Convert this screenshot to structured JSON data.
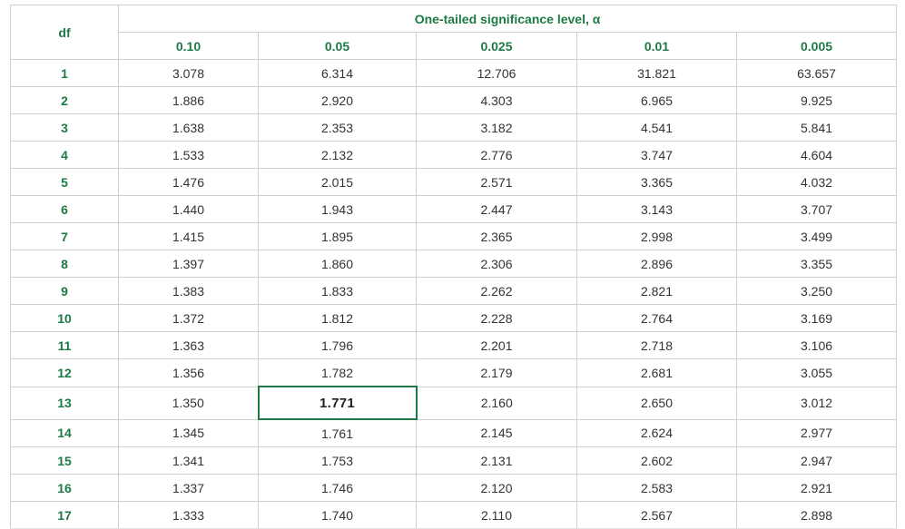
{
  "header": {
    "df_label": "df",
    "group_label": "One-tailed significance level, α",
    "alphas": [
      "0.10",
      "0.05",
      "0.025",
      "0.01",
      "0.005"
    ]
  },
  "rows": [
    {
      "df": "1",
      "values": [
        "3.078",
        "6.314",
        "12.706",
        "31.821",
        "63.657"
      ]
    },
    {
      "df": "2",
      "values": [
        "1.886",
        "2.920",
        "4.303",
        "6.965",
        "9.925"
      ]
    },
    {
      "df": "3",
      "values": [
        "1.638",
        "2.353",
        "3.182",
        "4.541",
        "5.841"
      ]
    },
    {
      "df": "4",
      "values": [
        "1.533",
        "2.132",
        "2.776",
        "3.747",
        "4.604"
      ]
    },
    {
      "df": "5",
      "values": [
        "1.476",
        "2.015",
        "2.571",
        "3.365",
        "4.032"
      ]
    },
    {
      "df": "6",
      "values": [
        "1.440",
        "1.943",
        "2.447",
        "3.143",
        "3.707"
      ]
    },
    {
      "df": "7",
      "values": [
        "1.415",
        "1.895",
        "2.365",
        "2.998",
        "3.499"
      ]
    },
    {
      "df": "8",
      "values": [
        "1.397",
        "1.860",
        "2.306",
        "2.896",
        "3.355"
      ]
    },
    {
      "df": "9",
      "values": [
        "1.383",
        "1.833",
        "2.262",
        "2.821",
        "3.250"
      ]
    },
    {
      "df": "10",
      "values": [
        "1.372",
        "1.812",
        "2.228",
        "2.764",
        "3.169"
      ]
    },
    {
      "df": "11",
      "values": [
        "1.363",
        "1.796",
        "2.201",
        "2.718",
        "3.106"
      ]
    },
    {
      "df": "12",
      "values": [
        "1.356",
        "1.782",
        "2.179",
        "2.681",
        "3.055"
      ]
    },
    {
      "df": "13",
      "values": [
        "1.350",
        "1.771",
        "2.160",
        "2.650",
        "3.012"
      ]
    },
    {
      "df": "14",
      "values": [
        "1.345",
        "1.761",
        "2.145",
        "2.624",
        "2.977"
      ]
    },
    {
      "df": "15",
      "values": [
        "1.341",
        "1.753",
        "2.131",
        "2.602",
        "2.947"
      ]
    },
    {
      "df": "16",
      "values": [
        "1.337",
        "1.746",
        "2.120",
        "2.583",
        "2.921"
      ]
    },
    {
      "df": "17",
      "values": [
        "1.333",
        "1.740",
        "2.110",
        "2.567",
        "2.898"
      ]
    }
  ],
  "highlight": {
    "df": "13",
    "alpha": "0.05"
  },
  "colors": {
    "accent": "#1d7a45",
    "border": "#cfcfcf",
    "text": "#333333"
  }
}
